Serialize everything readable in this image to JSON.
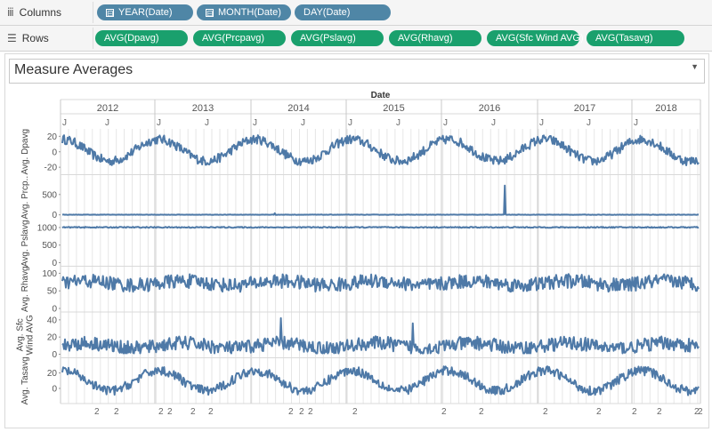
{
  "columns_shelf": {
    "label": "Columns",
    "icon": "columns-icon",
    "pills": [
      "YEAR(Date)",
      "MONTH(Date)",
      "DAY(Date)"
    ],
    "pill_toggle": "⊟"
  },
  "rows_shelf": {
    "label": "Rows",
    "icon": "rows-icon",
    "pills": [
      "AVG(Dpavg)",
      "AVG(Prcpavg)",
      "AVG(Pslavg)",
      "AVG(Rhavg)",
      "AVG(Sfc Wind AVG)",
      "AVG(Tasavg)"
    ]
  },
  "view": {
    "title": "Measure Averages"
  },
  "colors": {
    "line": "#4e79a7",
    "column_pill": "#4f86a6",
    "row_pill": "#1aa06d"
  },
  "chart_data": {
    "type": "line",
    "x_title": "Date",
    "years": [
      "2012",
      "2013",
      "2014",
      "2015",
      "2016",
      "2017",
      "2018"
    ],
    "year_month_marks": [
      "J",
      "J",
      "J",
      "J",
      "J",
      "J",
      "J",
      "J",
      "J",
      "J",
      "J",
      "J",
      "J"
    ],
    "bottom_day_marks": [
      "2",
      "2",
      "2",
      "2",
      "2",
      "2",
      "2",
      "2",
      "2",
      "2",
      "2",
      "2",
      "2",
      "2",
      "2",
      "2",
      "2",
      "2"
    ],
    "series": [
      {
        "name": "Avg. Dpavg",
        "ylim": [
          -25,
          25
        ],
        "ticks": [
          "20",
          "0",
          "-20"
        ],
        "pattern": "seasonal",
        "approx_amplitude": 14,
        "approx_mean": 2
      },
      {
        "name": "Avg. Prcp..",
        "ylim": [
          -50,
          900
        ],
        "ticks": [
          "500",
          "0"
        ],
        "pattern": "near-zero with spikes",
        "spike_values": [
          720,
          40
        ]
      },
      {
        "name": "Avg. Pslavg",
        "ylim": [
          0,
          1100
        ],
        "ticks": [
          "1000",
          "500",
          "0"
        ],
        "pattern": "flat",
        "approx_mean": 1005
      },
      {
        "name": "Avg. Rhavg",
        "ylim": [
          0,
          110
        ],
        "ticks": [
          "100",
          "50",
          "0"
        ],
        "pattern": "noisy",
        "approx_mean": 72,
        "approx_range": [
          45,
          95
        ]
      },
      {
        "name": "Avg. Sfc Wind AVG",
        "ylim": [
          0,
          45
        ],
        "ticks": [
          "40",
          "20",
          "0"
        ],
        "pattern": "noisy with spikes",
        "approx_mean": 10,
        "spike_values": [
          42,
          36
        ]
      },
      {
        "name": "Avg. Tasavg",
        "ylim": [
          -15,
          35
        ],
        "ticks": [
          "20",
          "0"
        ],
        "pattern": "seasonal",
        "approx_amplitude": 13,
        "approx_mean": 10
      }
    ]
  }
}
